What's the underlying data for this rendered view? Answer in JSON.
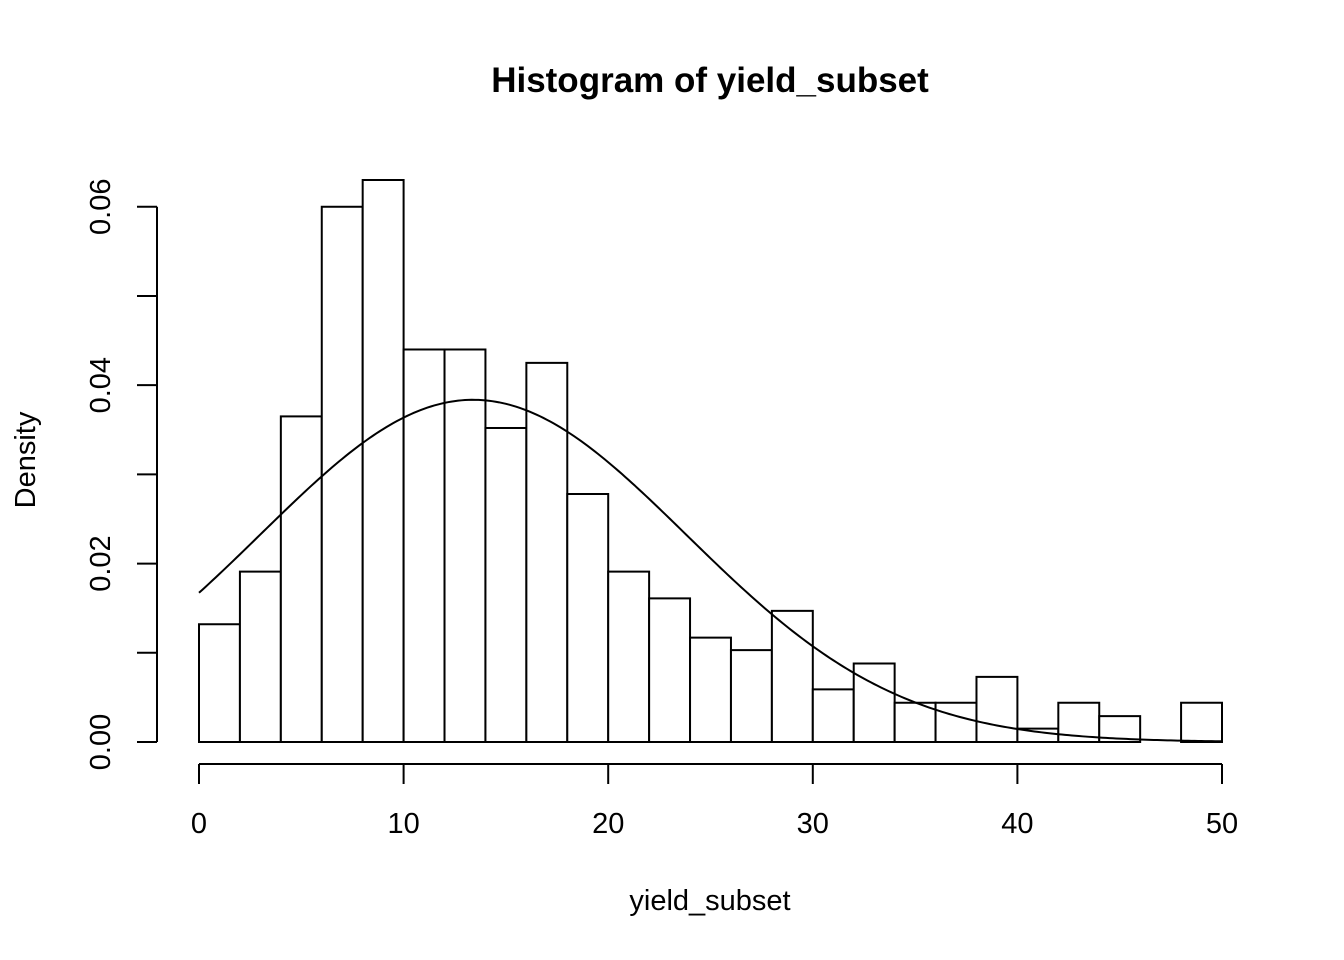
{
  "chart_data": {
    "type": "bar",
    "title": "Histogram of yield_subset",
    "xlabel": "yield_subset",
    "ylabel": "Density",
    "xlim": [
      0,
      50
    ],
    "ylim": [
      0,
      0.063
    ],
    "x_ticks": [
      0,
      10,
      20,
      30,
      40,
      50
    ],
    "x_tick_labels": [
      "0",
      "10",
      "20",
      "30",
      "40",
      "50"
    ],
    "y_ticks": [
      0,
      0.01,
      0.02,
      0.03,
      0.04,
      0.05,
      0.06
    ],
    "y_tick_labels": [
      "0.00",
      "",
      "0.02",
      "",
      "0.04",
      "",
      "0.06"
    ],
    "bin_edges": [
      0,
      2,
      4,
      6,
      8,
      10,
      12,
      14,
      16,
      18,
      20,
      22,
      24,
      26,
      28,
      30,
      32,
      34,
      36,
      38,
      40,
      42,
      44,
      46,
      48,
      50
    ],
    "values": [
      0.0132,
      0.0191,
      0.0365,
      0.06,
      0.063,
      0.044,
      0.044,
      0.0352,
      0.0425,
      0.0278,
      0.0191,
      0.0161,
      0.0117,
      0.0103,
      0.0147,
      0.0059,
      0.0088,
      0.0044,
      0.0044,
      0.0073,
      0.0015,
      0.0044,
      0.0029,
      0.0,
      0.0044
    ],
    "density_curve": {
      "type": "normal",
      "mean": 13.4,
      "sd": 10.4
    },
    "grid": false,
    "legend": "none"
  }
}
